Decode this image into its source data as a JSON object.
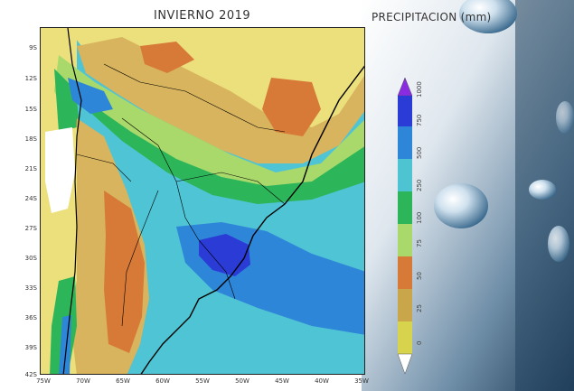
{
  "map": {
    "title": "INVIERNO 2019",
    "lat_labels": [
      "9S",
      "12S",
      "15S",
      "18S",
      "21S",
      "24S",
      "27S",
      "30S",
      "33S",
      "36S",
      "39S",
      "42S"
    ],
    "lon_labels": [
      "75W",
      "70W",
      "65W",
      "60W",
      "55W",
      "50W",
      "45W",
      "40W",
      "35W"
    ]
  },
  "legend": {
    "title": "PRECIPITACION (mm)",
    "levels": [
      "0",
      "25",
      "50",
      "75",
      "100",
      "250",
      "500",
      "750",
      "1000"
    ],
    "colors": [
      "#d7d34c",
      "#c9a64a",
      "#d77a38",
      "#a9d96a",
      "#2db55a",
      "#4ec4d2",
      "#2e86d8",
      "#2b3bd6",
      "#8a2be2"
    ]
  },
  "colors": {
    "dry": "#ebe07c",
    "tan": "#d7b45d",
    "orange": "#d77a38",
    "lightgreen": "#a9d96a",
    "green": "#2db55a",
    "cyan": "#4fc4d4",
    "blue": "#2e86d8",
    "darkblue": "#2b3bd6"
  }
}
